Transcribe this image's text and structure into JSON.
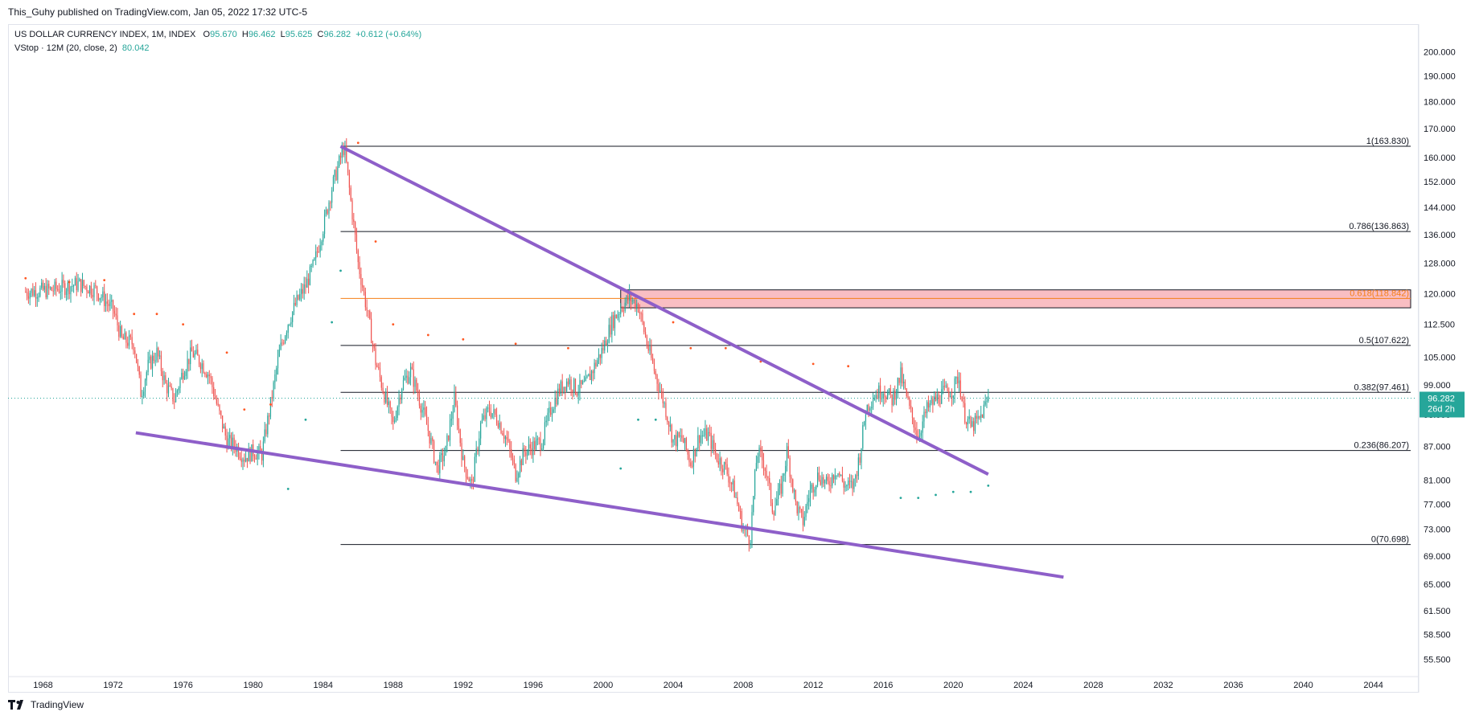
{
  "header": {
    "publish_line": "This_Guhy published on TradingView.com, Jan 05, 2022 17:32 UTC-5"
  },
  "legend": {
    "symbol": "US DOLLAR CURRENCY INDEX, 1M, INDEX",
    "o_label": "O",
    "o_value": "95.670",
    "h_label": "H",
    "h_value": "96.462",
    "l_label": "L",
    "l_value": "95.625",
    "c_label": "C",
    "c_value": "96.282",
    "change": "+0.612 (+0.64%)",
    "indicator_name": "VStop · 12M (20, close, 2)",
    "indicator_value": "80.042"
  },
  "branding": {
    "text": "TradingView"
  },
  "price_tag": {
    "value": "96.282",
    "countdown": "26d 2h",
    "color": "#26a69a"
  },
  "colors": {
    "up": "#26a69a",
    "down": "#ef5350",
    "trendline": "#8e5fc9",
    "fib_line": "#131722",
    "fib_618": "#f57f17",
    "zone_fill": "#f8b3b8",
    "vstop_up": "#26a69a",
    "vstop_down": "#ff5722"
  },
  "chart_data": {
    "type": "candlestick",
    "x_axis": {
      "ticks": [
        "1968",
        "1972",
        "1976",
        "1980",
        "1984",
        "1988",
        "1992",
        "1996",
        "2000",
        "2004",
        "2008",
        "2012",
        "2016",
        "2020",
        "2024",
        "2028",
        "2032",
        "2036",
        "2040",
        "2044"
      ],
      "range": [
        1966.0,
        2046.5
      ]
    },
    "y_axis": {
      "scale": "log",
      "ticks": [
        "200.000",
        "190.000",
        "180.000",
        "170.000",
        "160.000",
        "152.000",
        "144.000",
        "136.000",
        "128.000",
        "120.000",
        "112.500",
        "105.000",
        "99.000",
        "93.000",
        "87.000",
        "81.000",
        "77.000",
        "73.000",
        "69.000",
        "65.000",
        "61.500",
        "58.500",
        "55.500"
      ],
      "range": [
        53.5,
        212.0
      ]
    },
    "close_path": [
      [
        1967.0,
        120.5
      ],
      [
        1968.5,
        121.0
      ],
      [
        1970.0,
        122.5
      ],
      [
        1971.0,
        121.0
      ],
      [
        1972.0,
        116.0
      ],
      [
        1972.5,
        109.0
      ],
      [
        1973.2,
        108.0
      ],
      [
        1973.6,
        97.0
      ],
      [
        1974.0,
        103.0
      ],
      [
        1974.5,
        106.0
      ],
      [
        1975.0,
        99.0
      ],
      [
        1975.5,
        96.0
      ],
      [
        1976.0,
        102.0
      ],
      [
        1976.5,
        106.0
      ],
      [
        1977.0,
        104.0
      ],
      [
        1977.5,
        101.0
      ],
      [
        1978.0,
        94.0
      ],
      [
        1978.5,
        88.0
      ],
      [
        1979.0,
        87.0
      ],
      [
        1979.5,
        85.0
      ],
      [
        1980.0,
        86.0
      ],
      [
        1980.5,
        85.5
      ],
      [
        1981.0,
        95.0
      ],
      [
        1981.5,
        106.0
      ],
      [
        1982.0,
        113.0
      ],
      [
        1982.5,
        118.0
      ],
      [
        1983.0,
        122.0
      ],
      [
        1983.5,
        128.0
      ],
      [
        1984.0,
        138.0
      ],
      [
        1984.5,
        150.0
      ],
      [
        1985.2,
        163.8
      ],
      [
        1985.6,
        145.0
      ],
      [
        1986.0,
        128.0
      ],
      [
        1986.5,
        116.0
      ],
      [
        1987.0,
        104.0
      ],
      [
        1987.5,
        97.0
      ],
      [
        1988.0,
        91.0
      ],
      [
        1988.5,
        99.0
      ],
      [
        1989.0,
        102.0
      ],
      [
        1989.5,
        96.0
      ],
      [
        1990.0,
        90.0
      ],
      [
        1990.5,
        83.0
      ],
      [
        1991.0,
        86.0
      ],
      [
        1991.5,
        96.0
      ],
      [
        1992.0,
        84.0
      ],
      [
        1992.5,
        80.0
      ],
      [
        1993.0,
        91.0
      ],
      [
        1993.5,
        94.0
      ],
      [
        1994.0,
        92.0
      ],
      [
        1994.5,
        88.0
      ],
      [
        1995.0,
        82.0
      ],
      [
        1995.5,
        86.0
      ],
      [
        1996.0,
        87.0
      ],
      [
        1996.5,
        88.0
      ],
      [
        1997.0,
        94.0
      ],
      [
        1997.5,
        98.0
      ],
      [
        1998.0,
        100.0
      ],
      [
        1998.5,
        98.0
      ],
      [
        1999.0,
        99.0
      ],
      [
        1999.5,
        103.0
      ],
      [
        2000.0,
        107.0
      ],
      [
        2000.5,
        113.0
      ],
      [
        2001.0,
        116.5
      ],
      [
        2001.5,
        119.0
      ],
      [
        2002.0,
        117.0
      ],
      [
        2002.5,
        108.0
      ],
      [
        2003.0,
        101.0
      ],
      [
        2003.5,
        95.0
      ],
      [
        2004.0,
        88.0
      ],
      [
        2004.5,
        88.5
      ],
      [
        2005.0,
        84.0
      ],
      [
        2005.5,
        89.0
      ],
      [
        2006.0,
        89.0
      ],
      [
        2006.5,
        85.0
      ],
      [
        2007.0,
        83.0
      ],
      [
        2007.5,
        79.0
      ],
      [
        2008.0,
        73.0
      ],
      [
        2008.4,
        71.5
      ],
      [
        2008.8,
        86.0
      ],
      [
        2009.2,
        84.0
      ],
      [
        2009.7,
        76.0
      ],
      [
        2010.2,
        80.0
      ],
      [
        2010.5,
        86.0
      ],
      [
        2011.0,
        77.0
      ],
      [
        2011.4,
        74.0
      ],
      [
        2011.8,
        79.0
      ],
      [
        2012.3,
        82.0
      ],
      [
        2012.8,
        80.0
      ],
      [
        2013.3,
        83.0
      ],
      [
        2013.8,
        80.0
      ],
      [
        2014.3,
        80.0
      ],
      [
        2014.7,
        86.0
      ],
      [
        2015.0,
        94.0
      ],
      [
        2015.5,
        97.0
      ],
      [
        2016.0,
        98.0
      ],
      [
        2016.5,
        96.0
      ],
      [
        2017.0,
        101.0
      ],
      [
        2017.5,
        94.0
      ],
      [
        2018.0,
        89.0
      ],
      [
        2018.5,
        94.0
      ],
      [
        2019.0,
        96.0
      ],
      [
        2019.5,
        97.5
      ],
      [
        2020.0,
        98.0
      ],
      [
        2020.3,
        101.0
      ],
      [
        2020.6,
        93.5
      ],
      [
        2021.0,
        90.5
      ],
      [
        2021.5,
        92.0
      ],
      [
        2022.0,
        96.282
      ]
    ],
    "vstop": [
      {
        "x": 1967.0,
        "y": 124.0,
        "side": "down"
      },
      {
        "x": 1969.5,
        "y": 123.0,
        "side": "down"
      },
      {
        "x": 1971.5,
        "y": 123.5,
        "side": "down"
      },
      {
        "x": 1973.2,
        "y": 115.0,
        "side": "down"
      },
      {
        "x": 1974.5,
        "y": 115.0,
        "side": "down"
      },
      {
        "x": 1976.0,
        "y": 112.5,
        "side": "down"
      },
      {
        "x": 1978.5,
        "y": 106.0,
        "side": "down"
      },
      {
        "x": 1979.5,
        "y": 94.0,
        "side": "down"
      },
      {
        "x": 1981.0,
        "y": 95.0,
        "side": "down"
      },
      {
        "x": 1982.0,
        "y": 79.5,
        "side": "up"
      },
      {
        "x": 1983.0,
        "y": 92.0,
        "side": "up"
      },
      {
        "x": 1984.5,
        "y": 113.0,
        "side": "up"
      },
      {
        "x": 1985.0,
        "y": 126.0,
        "side": "up"
      },
      {
        "x": 1986.0,
        "y": 165.0,
        "side": "down"
      },
      {
        "x": 1987.0,
        "y": 134.0,
        "side": "down"
      },
      {
        "x": 1988.0,
        "y": 112.5,
        "side": "down"
      },
      {
        "x": 1990.0,
        "y": 110.0,
        "side": "down"
      },
      {
        "x": 1992.0,
        "y": 109.0,
        "side": "down"
      },
      {
        "x": 1995.0,
        "y": 108.0,
        "side": "down"
      },
      {
        "x": 1998.0,
        "y": 107.0,
        "side": "down"
      },
      {
        "x": 2001.0,
        "y": 83.0,
        "side": "up"
      },
      {
        "x": 2002.0,
        "y": 92.0,
        "side": "up"
      },
      {
        "x": 2003.0,
        "y": 92.0,
        "side": "up"
      },
      {
        "x": 2004.0,
        "y": 113.0,
        "side": "down"
      },
      {
        "x": 2005.0,
        "y": 107.0,
        "side": "down"
      },
      {
        "x": 2007.0,
        "y": 107.0,
        "side": "down"
      },
      {
        "x": 2009.0,
        "y": 104.0,
        "side": "down"
      },
      {
        "x": 2012.0,
        "y": 103.5,
        "side": "down"
      },
      {
        "x": 2014.0,
        "y": 103.0,
        "side": "down"
      },
      {
        "x": 2017.0,
        "y": 78.0,
        "side": "up"
      },
      {
        "x": 2018.0,
        "y": 78.0,
        "side": "up"
      },
      {
        "x": 2019.0,
        "y": 78.5,
        "side": "up"
      },
      {
        "x": 2020.0,
        "y": 79.0,
        "side": "up"
      },
      {
        "x": 2021.0,
        "y": 79.0,
        "side": "up"
      },
      {
        "x": 2022.0,
        "y": 80.042,
        "side": "up"
      }
    ],
    "fibonacci": [
      {
        "label": "1(163.830)",
        "value": 163.83
      },
      {
        "label": "0.786(136.863)",
        "value": 136.863
      },
      {
        "label": "0.618(118.842)",
        "value": 118.842,
        "highlight": true
      },
      {
        "label": "0.5(107.622)",
        "value": 107.622
      },
      {
        "label": "0.382(97.461)",
        "value": 97.461
      },
      {
        "label": "0.236(86.207)",
        "value": 86.207
      },
      {
        "label": "0(70.698)",
        "value": 70.698
      }
    ],
    "fib_start_x": 1985.0,
    "zone": {
      "x_start": 2001.0,
      "y_top": 121.0,
      "y_bottom": 116.5
    },
    "trendlines": [
      {
        "name": "upper-trendline",
        "from": [
          1985.0,
          163.8
        ],
        "to": [
          2022.0,
          82.0
        ]
      },
      {
        "name": "lower-trendline",
        "from": [
          1973.3,
          89.5
        ],
        "to": [
          2026.3,
          66.0
        ]
      }
    ],
    "current_price": 96.282
  }
}
